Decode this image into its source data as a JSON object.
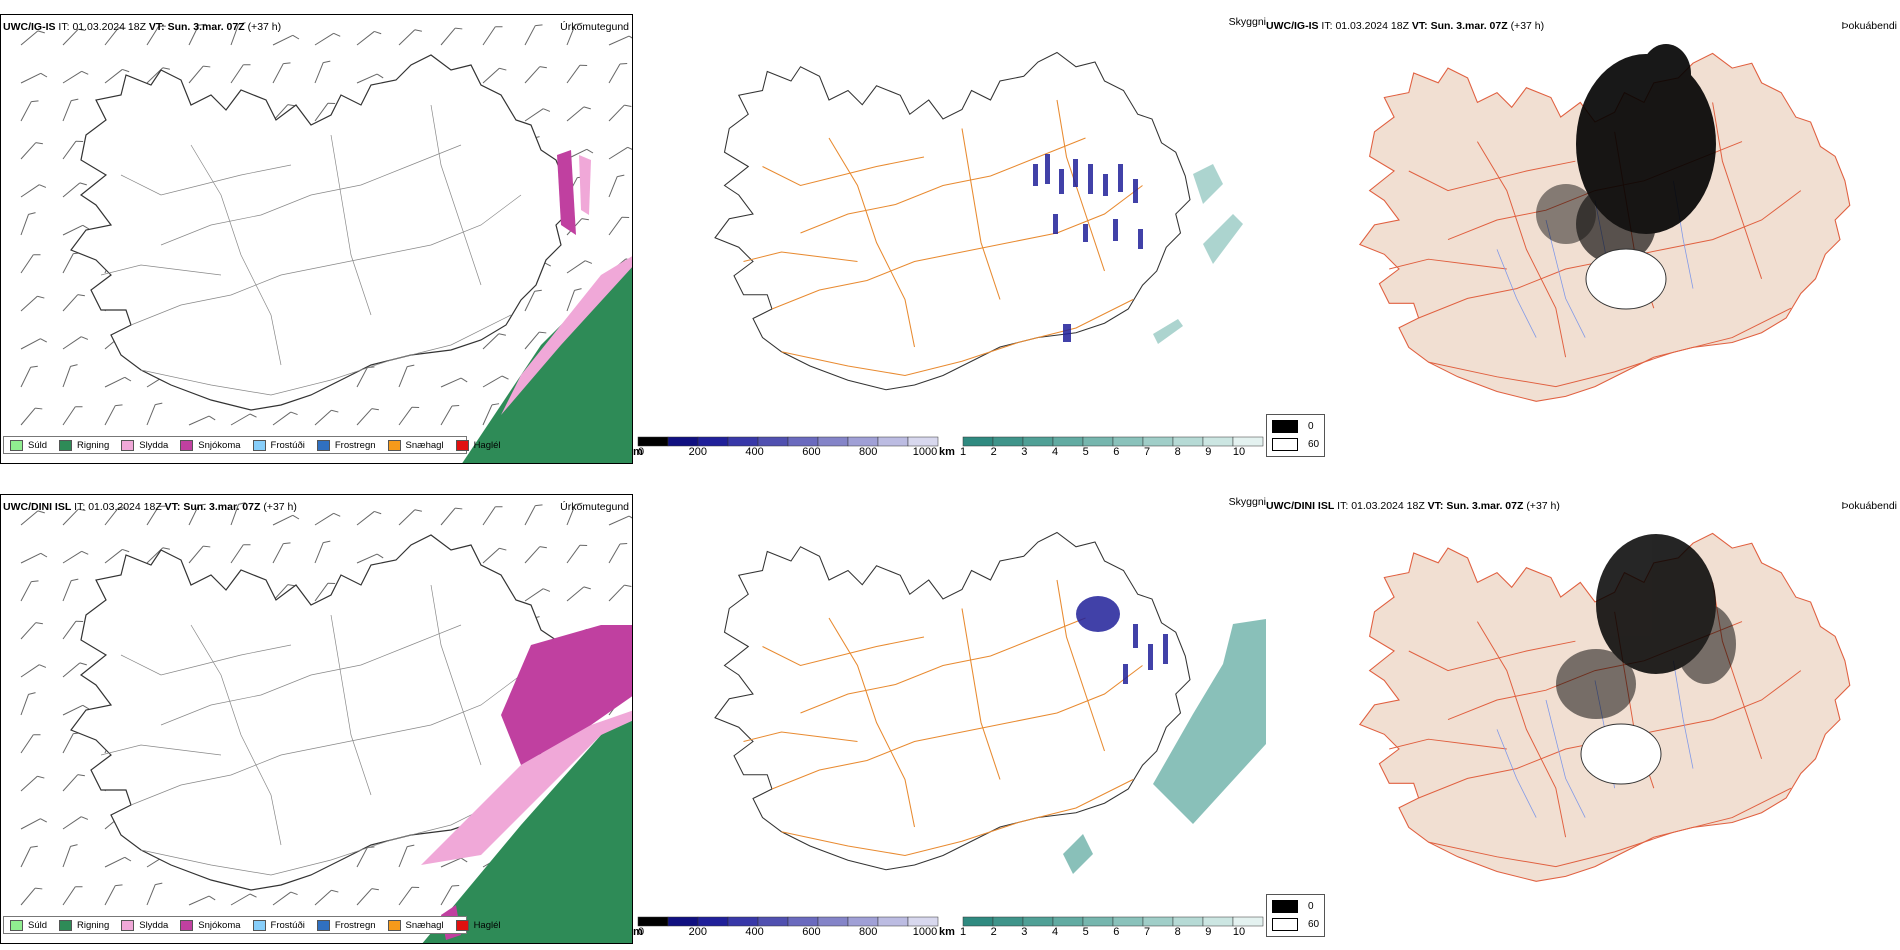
{
  "rows": [
    {
      "model_label": "UWC/IG-IS",
      "it_label": "IT:",
      "it_value": "01.03.2024 18Z",
      "vt_label": "VT:",
      "vt_value": "Sun. 3.mar. 07Z",
      "lead": "(+37 h)"
    },
    {
      "model_label": "UWC/DINI ISL",
      "it_label": "IT:",
      "it_value": "01.03.2024 18Z",
      "vt_label": "VT:",
      "vt_value": "Sun. 3.mar. 07Z",
      "lead": "(+37 h)"
    }
  ],
  "panel_names": {
    "precip_type": "Úrkomutegund",
    "visibility": "Skyggni",
    "fog": "Þokuábendi"
  },
  "precip_legend": [
    {
      "label": "Súld",
      "color": "#90ee90"
    },
    {
      "label": "Rigning",
      "color": "#2e8b57"
    },
    {
      "label": "Slydda",
      "color": "#f0a8d8"
    },
    {
      "label": "Snjókoma",
      "color": "#c040a0"
    },
    {
      "label": "Frostúði",
      "color": "#87cefa"
    },
    {
      "label": "Frostregn",
      "color": "#3070c0"
    },
    {
      "label": "Snæhagl",
      "color": "#f59a1a"
    },
    {
      "label": "Haglél",
      "color": "#e01010"
    }
  ],
  "visibility_bar_m": {
    "unit": "m",
    "ticks": [
      "0",
      "200",
      "400",
      "600",
      "800",
      "1000"
    ],
    "colors": [
      "#000000",
      "#101080",
      "#20209a",
      "#3838a8",
      "#5050b0",
      "#6a6abe",
      "#8484c8",
      "#a0a0d6",
      "#bcbce2",
      "#d8d8ee"
    ]
  },
  "visibility_bar_km": {
    "unit": "km",
    "ticks": [
      "1",
      "2",
      "3",
      "4",
      "5",
      "6",
      "7",
      "8",
      "9",
      "10"
    ],
    "colors": [
      "#2f8a80",
      "#3f948a",
      "#50a096",
      "#62aba2",
      "#76b6ae",
      "#8ac2bb",
      "#a0cec8",
      "#b6dad5",
      "#cce6e2",
      "#e4f2f0"
    ]
  },
  "fog_legend": [
    {
      "label": "0",
      "color": "#000000"
    },
    {
      "label": "60",
      "color": "#ffffff"
    }
  ]
}
